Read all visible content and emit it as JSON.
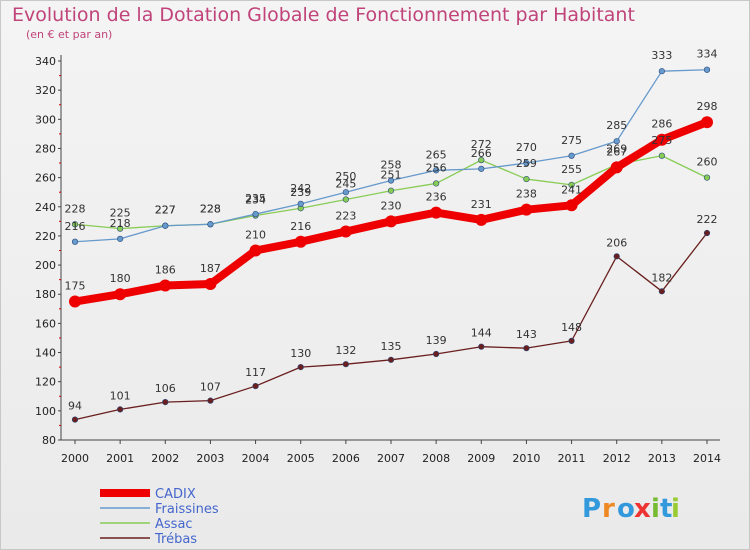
{
  "title": "Evolution de la Dotation Globale de Fonctionnement par Habitant",
  "subtitle": "(en € et par an)",
  "logo": {
    "text": "Proxiti",
    "colors": [
      "#3399dd",
      "#ee8822",
      "#3399dd",
      "#ee3333",
      "#77bb33",
      "#3399dd",
      "#99cc33"
    ]
  },
  "chart_data": {
    "type": "line",
    "x": [
      2000,
      2001,
      2002,
      2003,
      2004,
      2005,
      2006,
      2007,
      2008,
      2009,
      2010,
      2011,
      2012,
      2013,
      2014
    ],
    "xlabels": [
      "2000",
      "2001",
      "2002",
      "2003",
      "2004",
      "2005",
      "2006",
      "2007",
      "2008",
      "2009",
      "2010",
      "2011",
      "2012",
      "2013",
      "2014"
    ],
    "ylim": [
      80,
      340
    ],
    "yticks": [
      80,
      100,
      120,
      140,
      160,
      180,
      200,
      220,
      240,
      260,
      280,
      300,
      320,
      340
    ],
    "grid": false,
    "legend": "bottom-left",
    "series": [
      {
        "name": "CADIX",
        "color": "#ee0000",
        "values": [
          175,
          180,
          186,
          187,
          210,
          216,
          223,
          230,
          236,
          231,
          238,
          241,
          267,
          286,
          298
        ]
      },
      {
        "name": "Fraissines",
        "color": "#6699cc",
        "values": [
          216,
          218,
          227,
          228,
          235,
          242,
          250,
          258,
          265,
          266,
          270,
          275,
          285,
          333,
          334
        ]
      },
      {
        "name": "Assac",
        "color": "#88cc55",
        "values": [
          228,
          225,
          227,
          228,
          234,
          239,
          245,
          251,
          256,
          272,
          259,
          255,
          269,
          275,
          260
        ]
      },
      {
        "name": "Trébas",
        "color": "#6a1e1e",
        "values": [
          94,
          101,
          106,
          107,
          117,
          130,
          132,
          135,
          139,
          144,
          143,
          148,
          206,
          182,
          222
        ]
      }
    ]
  }
}
